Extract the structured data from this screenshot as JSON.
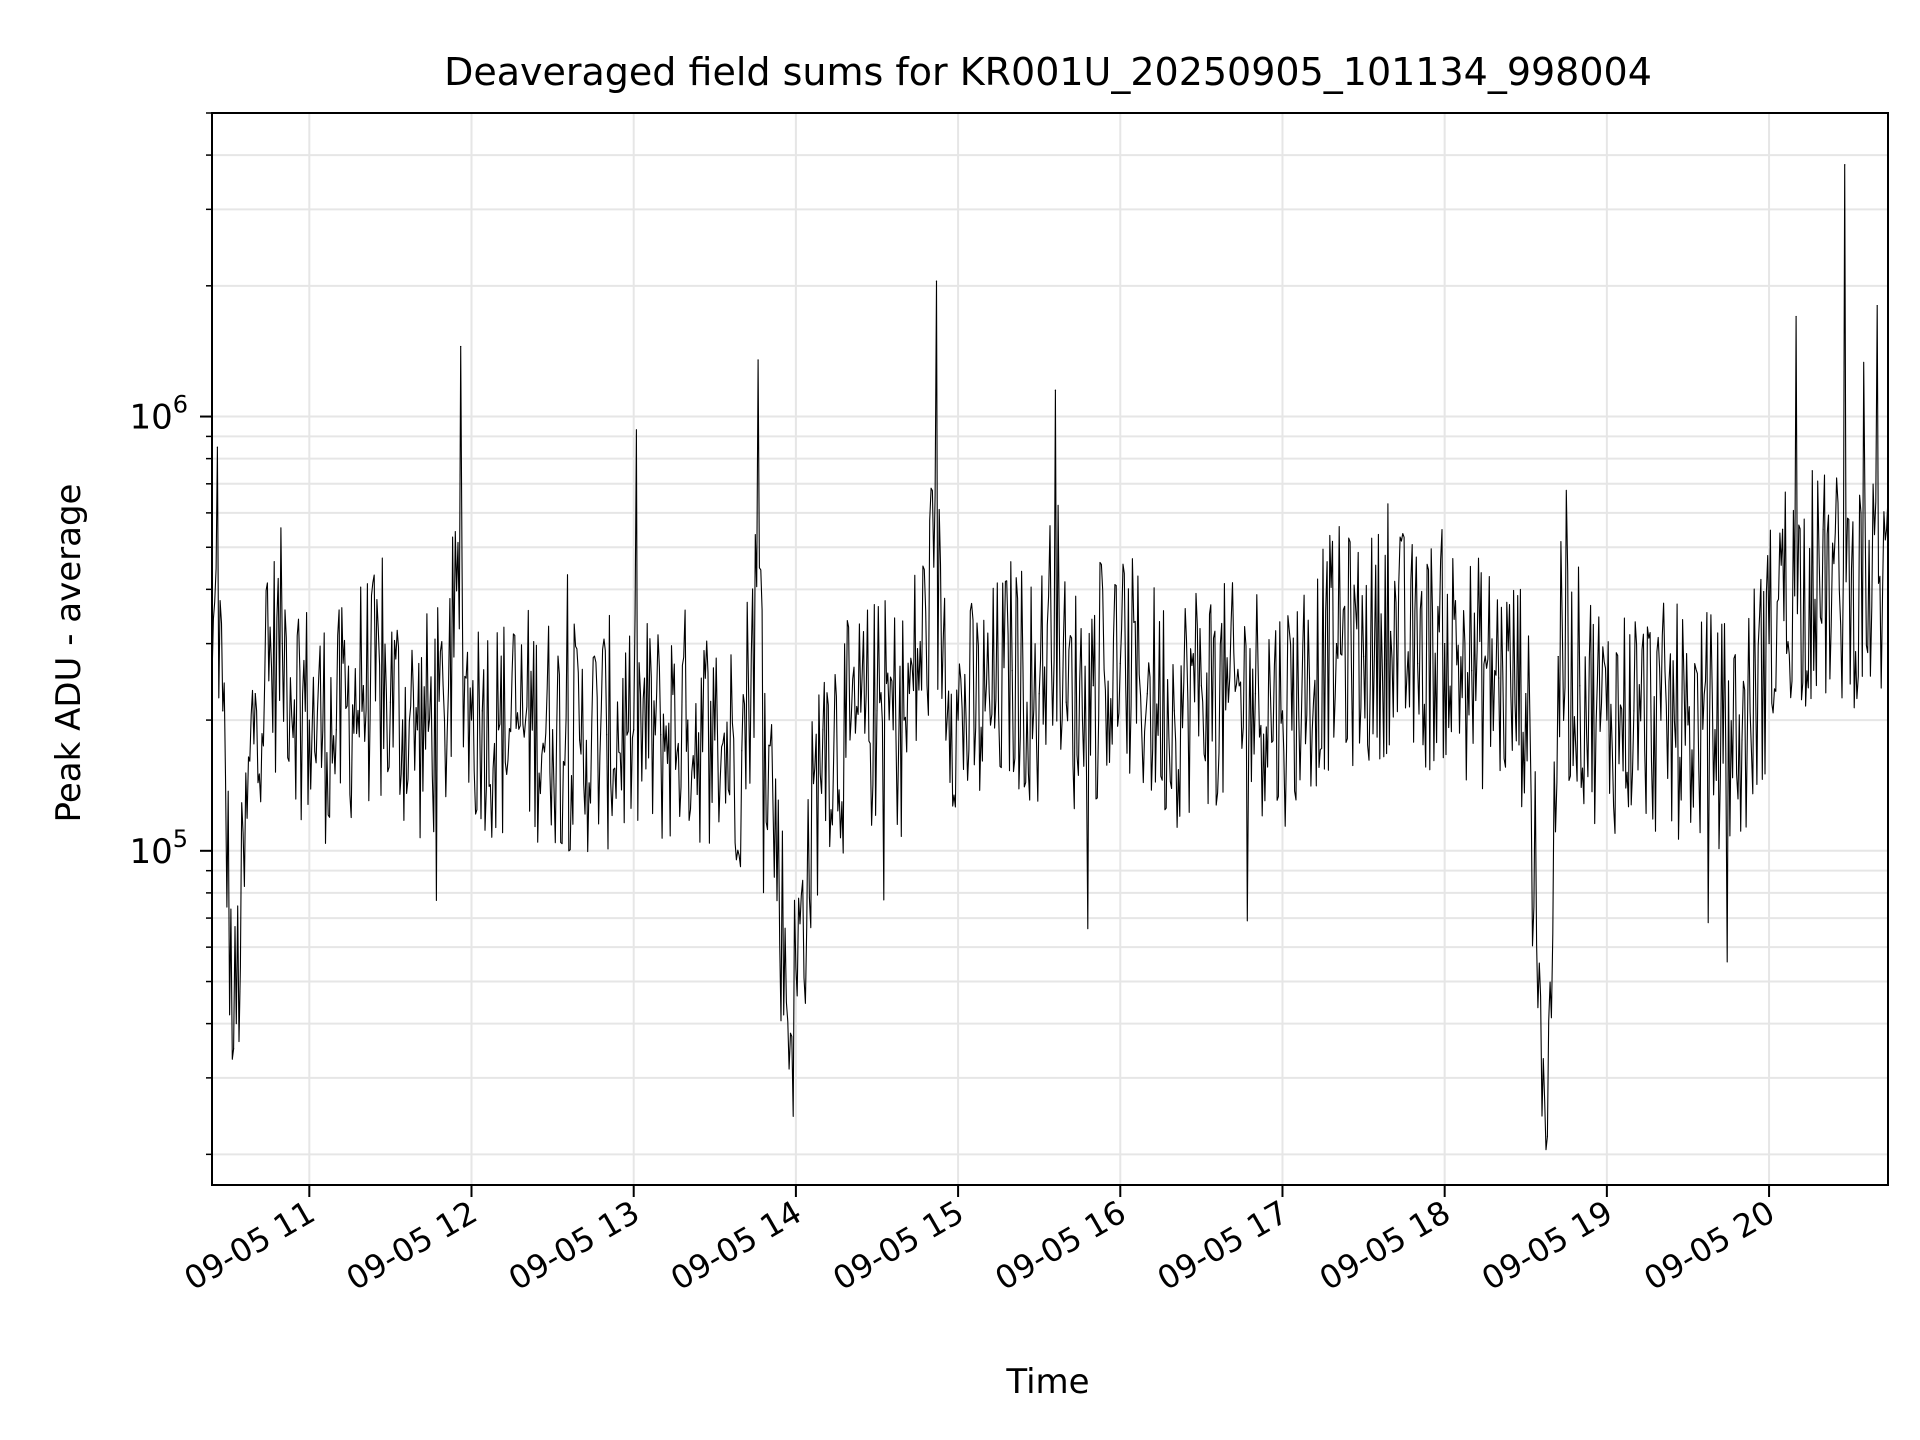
{
  "chart_data": {
    "type": "line",
    "title": "Deaveraged field sums for KR001U_20250905_101134_998004",
    "xlabel": "Time",
    "ylabel": "Peak ADU - average",
    "yscale": "log",
    "ylim": [
      17000,
      5000000
    ],
    "xlim": [
      "2025-09-05 10:24",
      "2025-09-05 20:44"
    ],
    "grid": true,
    "line_color": "#000000",
    "grid_color": "#e6e6e6",
    "x_ticks": [
      "2025-09-05 11:00",
      "2025-09-05 12:00",
      "2025-09-05 13:00",
      "2025-09-05 14:00",
      "2025-09-05 15:00",
      "2025-09-05 16:00",
      "2025-09-05 17:00",
      "2025-09-05 18:00",
      "2025-09-05 19:00",
      "2025-09-05 20:00"
    ],
    "x_tick_labels": [
      "09-05 11",
      "09-05 12",
      "09-05 13",
      "09-05 14",
      "09-05 15",
      "09-05 16",
      "09-05 17",
      "09-05 18",
      "09-05 19",
      "09-05 20"
    ],
    "y_ticks": [
      {
        "value": 100000,
        "base": "10",
        "exp": "5"
      },
      {
        "value": 1000000,
        "base": "10",
        "exp": "6"
      }
    ],
    "series": [
      {
        "x": [
          "2025-09-05 10:24",
          "2025-09-05 10:26",
          "2025-09-05 10:28",
          "2025-09-05 10:32",
          "2025-09-05 10:40",
          "2025-09-05 10:50",
          "2025-09-05 11:00",
          "2025-09-05 11:10",
          "2025-09-05 11:20",
          "2025-09-05 11:30",
          "2025-09-05 11:40",
          "2025-09-05 11:50",
          "2025-09-05 11:56",
          "2025-09-05 11:58",
          "2025-09-05 12:00",
          "2025-09-05 12:04",
          "2025-09-05 12:10",
          "2025-09-05 12:20",
          "2025-09-05 12:30",
          "2025-09-05 12:40",
          "2025-09-05 12:50",
          "2025-09-05 13:00",
          "2025-09-05 13:10",
          "2025-09-05 13:20",
          "2025-09-05 13:30",
          "2025-09-05 13:40",
          "2025-09-05 13:46",
          "2025-09-05 13:50",
          "2025-09-05 13:58",
          "2025-09-05 14:10",
          "2025-09-05 14:20",
          "2025-09-05 14:30",
          "2025-09-05 14:40",
          "2025-09-05 14:52",
          "2025-09-05 15:00",
          "2025-09-05 15:10",
          "2025-09-05 15:20",
          "2025-09-05 15:30",
          "2025-09-05 15:36",
          "2025-09-05 15:40",
          "2025-09-05 15:50",
          "2025-09-05 16:00",
          "2025-09-05 16:10",
          "2025-09-05 16:20",
          "2025-09-05 16:30",
          "2025-09-05 16:40",
          "2025-09-05 16:50",
          "2025-09-05 17:00",
          "2025-09-05 17:10",
          "2025-09-05 17:20",
          "2025-09-05 17:30",
          "2025-09-05 17:40",
          "2025-09-05 17:50",
          "2025-09-05 18:00",
          "2025-09-05 18:10",
          "2025-09-05 18:20",
          "2025-09-05 18:30",
          "2025-09-05 18:38",
          "2025-09-05 18:42",
          "2025-09-05 18:50",
          "2025-09-05 19:00",
          "2025-09-05 19:10",
          "2025-09-05 19:20",
          "2025-09-05 19:30",
          "2025-09-05 19:40",
          "2025-09-05 19:50",
          "2025-09-05 20:00",
          "2025-09-05 20:05",
          "2025-09-05 20:10",
          "2025-09-05 20:16",
          "2025-09-05 20:20",
          "2025-09-05 20:28",
          "2025-09-05 20:34",
          "2025-09-05 20:40",
          "2025-09-05 20:44"
        ],
        "y": [
          250000,
          850000,
          210000,
          35000,
          230000,
          300000,
          200000,
          190000,
          240000,
          220000,
          190000,
          200000,
          1450000,
          250000,
          200000,
          210000,
          190000,
          200000,
          190000,
          180000,
          185000,
          190000,
          185000,
          200000,
          180000,
          170000,
          1350000,
          175000,
          38000,
          190000,
          180000,
          210000,
          200000,
          2050000,
          200000,
          210000,
          260000,
          230000,
          1150000,
          220000,
          240000,
          270000,
          230000,
          210000,
          240000,
          220000,
          230000,
          210000,
          250000,
          300000,
          280000,
          320000,
          270000,
          300000,
          260000,
          250000,
          230000,
          22000,
          280000,
          240000,
          200000,
          210000,
          200000,
          195000,
          190000,
          180000,
          300000,
          550000,
          1700000,
          750000,
          550000,
          3800000,
          600000,
          1800000,
          650000
        ]
      }
    ]
  }
}
